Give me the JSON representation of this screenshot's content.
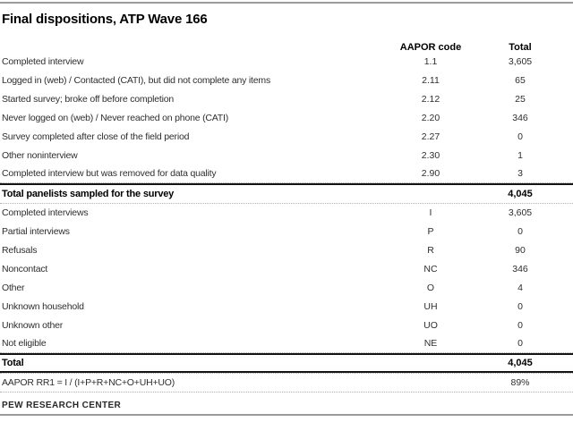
{
  "header": {
    "title": "Final dispositions, ATP Wave 166"
  },
  "table": {
    "columns": {
      "label": "",
      "code": "AAPOR code",
      "total": "Total"
    },
    "rows": [
      {
        "type": "data",
        "label": "Completed interview",
        "code": "1.1",
        "total": "3,605"
      },
      {
        "type": "data",
        "label": "Logged in (web) / Contacted (CATI), but did not complete any items",
        "code": "2.11",
        "total": "65"
      },
      {
        "type": "data",
        "label": "Started survey; broke off before completion",
        "code": "2.12",
        "total": "25"
      },
      {
        "type": "data",
        "label": "Never logged on (web) / Never reached on phone (CATI)",
        "code": "2.20",
        "total": "346"
      },
      {
        "type": "data",
        "label": "Survey completed after close of the field period",
        "code": "2.27",
        "total": "0"
      },
      {
        "type": "data",
        "label": "Other noninterview",
        "code": "2.30",
        "total": "1"
      },
      {
        "type": "data",
        "label": "Completed interview but was removed for data quality",
        "code": "2.90",
        "total": "3"
      },
      {
        "type": "section-total",
        "label": "Total panelists sampled for the survey",
        "code": "",
        "total": "4,045"
      },
      {
        "type": "data",
        "label": "Completed interviews",
        "code": "I",
        "total": "3,605"
      },
      {
        "type": "data",
        "label": "Partial interviews",
        "code": "P",
        "total": "0"
      },
      {
        "type": "data",
        "label": "Refusals",
        "code": "R",
        "total": "90"
      },
      {
        "type": "data",
        "label": "Noncontact",
        "code": "NC",
        "total": "346"
      },
      {
        "type": "data",
        "label": "Other",
        "code": "O",
        "total": "4"
      },
      {
        "type": "data",
        "label": "Unknown household",
        "code": "UH",
        "total": "0"
      },
      {
        "type": "data",
        "label": "Unknown other",
        "code": "UO",
        "total": "0"
      },
      {
        "type": "data",
        "label": "Not eligible",
        "code": "NE",
        "total": "0"
      },
      {
        "type": "grand-total",
        "label": "Total",
        "code": "",
        "total": "4,045"
      },
      {
        "type": "formula",
        "label": "AAPOR RR1 = I / (I+P+R+NC+O+UH+UO)",
        "code": "",
        "total": "89%"
      }
    ]
  },
  "footer": {
    "brand": "PEW RESEARCH CENTER"
  },
  "colors": {
    "page_rule_gray": "#9b9b9b",
    "total_rule_black": "#141414",
    "dotted_separator_gray": "#b0b0b0",
    "text_dark": "#2e2e2e"
  }
}
